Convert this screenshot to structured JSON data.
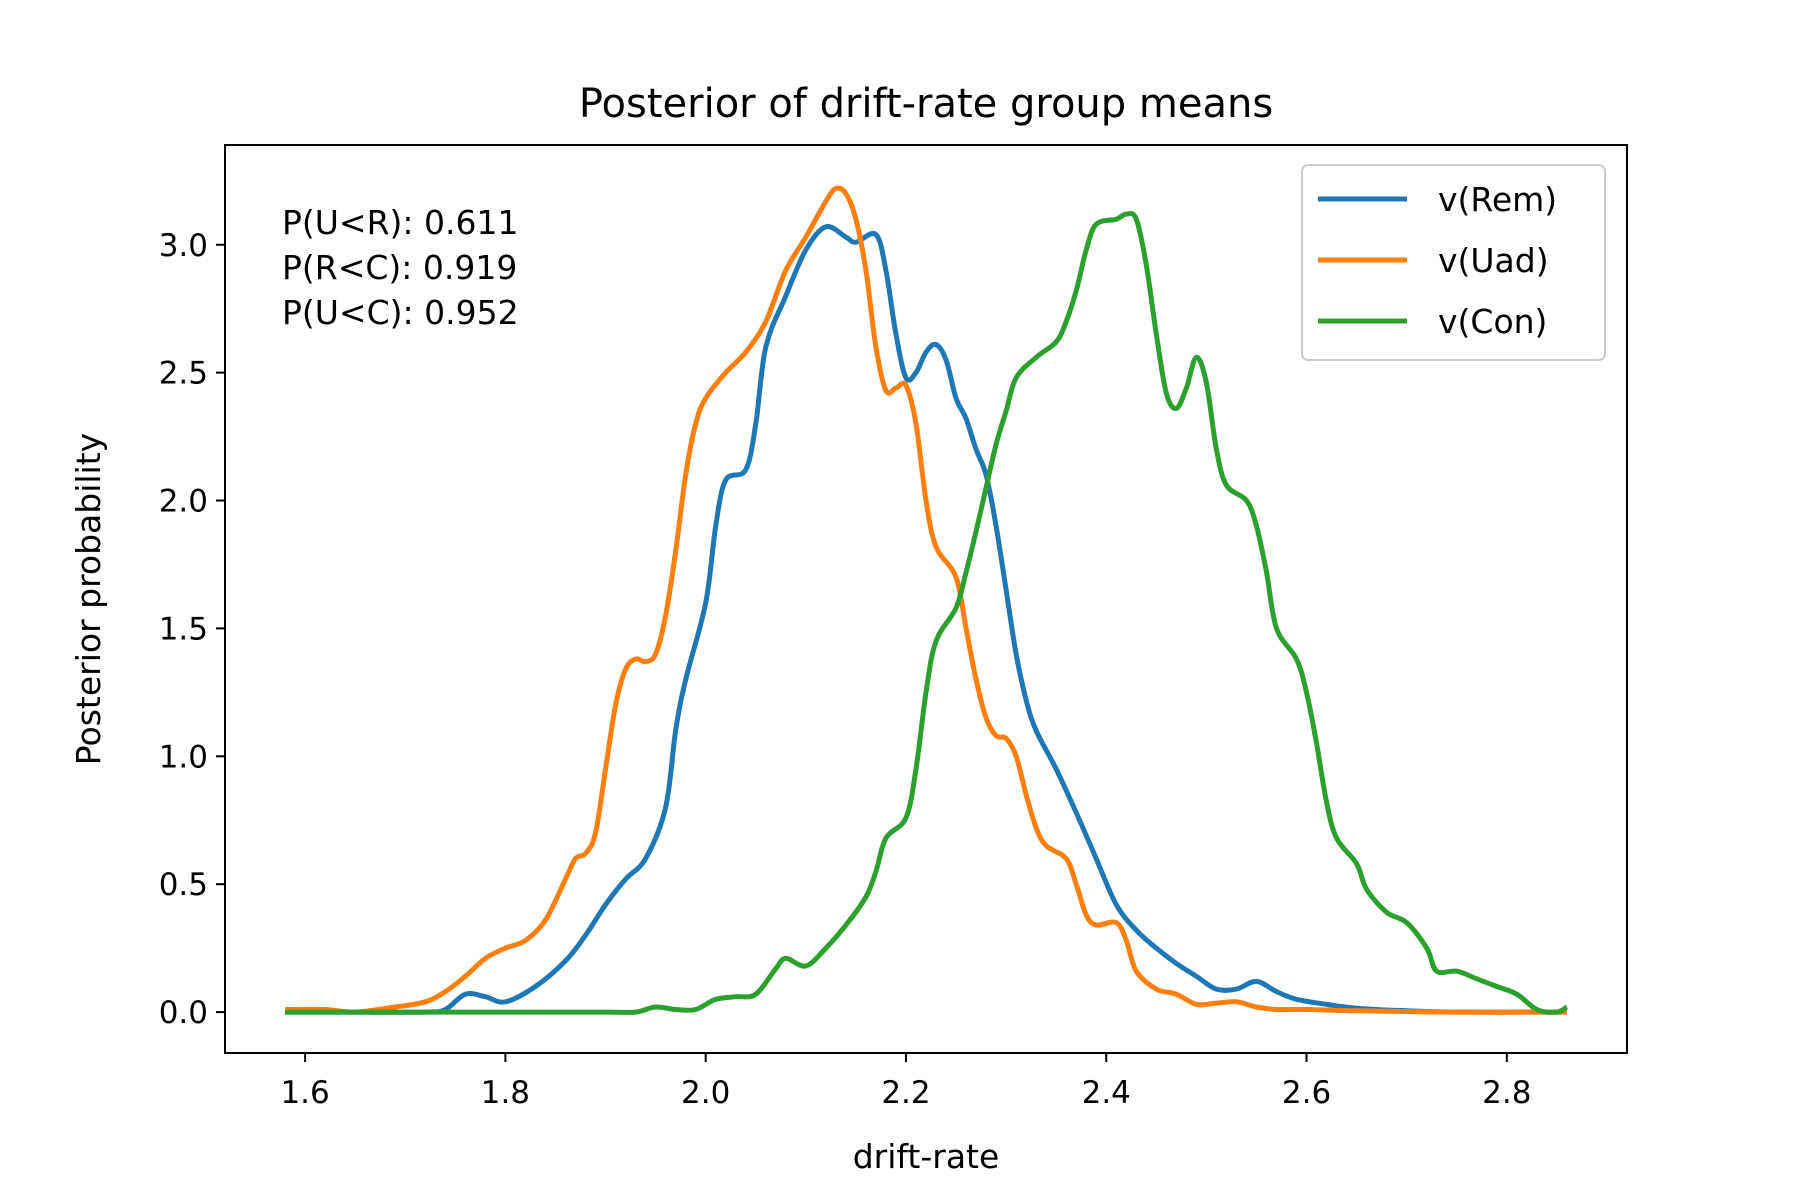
{
  "chart_data": {
    "type": "line",
    "title": "Posterior of drift-rate group means",
    "xlabel": "drift-rate",
    "ylabel": "Posterior probability",
    "xlim": [
      1.52,
      2.92
    ],
    "ylim": [
      -0.16,
      3.39
    ],
    "xticks": [
      "1.6",
      "1.8",
      "2.0",
      "2.2",
      "2.4",
      "2.6",
      "2.8"
    ],
    "xtick_values": [
      1.6,
      1.8,
      2.0,
      2.2,
      2.4,
      2.6,
      2.8
    ],
    "yticks": [
      "0.0",
      "0.5",
      "1.0",
      "1.5",
      "2.0",
      "2.5",
      "3.0"
    ],
    "ytick_values": [
      0.0,
      0.5,
      1.0,
      1.5,
      2.0,
      2.5,
      3.0
    ],
    "grid": false,
    "legend_position": "top-right",
    "annotations": [
      "P(U<R): 0.611",
      "P(R<C): 0.919",
      "P(U<C): 0.952"
    ],
    "series": [
      {
        "name": "v(Rem)",
        "color": "#1f77b4",
        "points": [
          [
            1.58,
            0.0
          ],
          [
            1.65,
            0.0
          ],
          [
            1.72,
            0.0
          ],
          [
            1.74,
            0.01
          ],
          [
            1.76,
            0.07
          ],
          [
            1.78,
            0.06
          ],
          [
            1.8,
            0.04
          ],
          [
            1.83,
            0.1
          ],
          [
            1.86,
            0.2
          ],
          [
            1.88,
            0.3
          ],
          [
            1.9,
            0.42
          ],
          [
            1.92,
            0.52
          ],
          [
            1.94,
            0.6
          ],
          [
            1.96,
            0.8
          ],
          [
            1.97,
            1.1
          ],
          [
            1.98,
            1.3
          ],
          [
            2.0,
            1.6
          ],
          [
            2.01,
            1.9
          ],
          [
            2.02,
            2.08
          ],
          [
            2.04,
            2.12
          ],
          [
            2.05,
            2.3
          ],
          [
            2.06,
            2.6
          ],
          [
            2.08,
            2.8
          ],
          [
            2.1,
            2.98
          ],
          [
            2.12,
            3.07
          ],
          [
            2.14,
            3.03
          ],
          [
            2.15,
            3.01
          ],
          [
            2.17,
            3.04
          ],
          [
            2.18,
            2.9
          ],
          [
            2.19,
            2.65
          ],
          [
            2.2,
            2.48
          ],
          [
            2.21,
            2.5
          ],
          [
            2.22,
            2.58
          ],
          [
            2.23,
            2.61
          ],
          [
            2.24,
            2.55
          ],
          [
            2.25,
            2.4
          ],
          [
            2.26,
            2.32
          ],
          [
            2.27,
            2.2
          ],
          [
            2.28,
            2.1
          ],
          [
            2.29,
            1.9
          ],
          [
            2.3,
            1.65
          ],
          [
            2.31,
            1.4
          ],
          [
            2.32,
            1.22
          ],
          [
            2.33,
            1.1
          ],
          [
            2.35,
            0.95
          ],
          [
            2.37,
            0.78
          ],
          [
            2.39,
            0.6
          ],
          [
            2.41,
            0.42
          ],
          [
            2.43,
            0.32
          ],
          [
            2.45,
            0.25
          ],
          [
            2.47,
            0.19
          ],
          [
            2.49,
            0.14
          ],
          [
            2.51,
            0.09
          ],
          [
            2.53,
            0.09
          ],
          [
            2.55,
            0.12
          ],
          [
            2.57,
            0.08
          ],
          [
            2.59,
            0.05
          ],
          [
            2.62,
            0.03
          ],
          [
            2.65,
            0.015
          ],
          [
            2.7,
            0.005
          ],
          [
            2.75,
            0.0
          ],
          [
            2.86,
            0.0
          ]
        ]
      },
      {
        "name": "v(Uad)",
        "color": "#ff7f0e",
        "points": [
          [
            1.58,
            0.01
          ],
          [
            1.62,
            0.01
          ],
          [
            1.65,
            0.0
          ],
          [
            1.69,
            0.02
          ],
          [
            1.72,
            0.04
          ],
          [
            1.74,
            0.08
          ],
          [
            1.76,
            0.14
          ],
          [
            1.78,
            0.21
          ],
          [
            1.8,
            0.25
          ],
          [
            1.82,
            0.28
          ],
          [
            1.84,
            0.36
          ],
          [
            1.86,
            0.52
          ],
          [
            1.87,
            0.6
          ],
          [
            1.88,
            0.62
          ],
          [
            1.89,
            0.7
          ],
          [
            1.9,
            0.95
          ],
          [
            1.91,
            1.2
          ],
          [
            1.92,
            1.34
          ],
          [
            1.93,
            1.38
          ],
          [
            1.94,
            1.37
          ],
          [
            1.95,
            1.4
          ],
          [
            1.96,
            1.55
          ],
          [
            1.97,
            1.8
          ],
          [
            1.98,
            2.1
          ],
          [
            1.99,
            2.3
          ],
          [
            2.0,
            2.4
          ],
          [
            2.02,
            2.5
          ],
          [
            2.04,
            2.58
          ],
          [
            2.06,
            2.7
          ],
          [
            2.08,
            2.9
          ],
          [
            2.1,
            3.03
          ],
          [
            2.12,
            3.17
          ],
          [
            2.13,
            3.22
          ],
          [
            2.14,
            3.2
          ],
          [
            2.15,
            3.1
          ],
          [
            2.16,
            2.9
          ],
          [
            2.17,
            2.6
          ],
          [
            2.18,
            2.43
          ],
          [
            2.19,
            2.44
          ],
          [
            2.2,
            2.45
          ],
          [
            2.21,
            2.3
          ],
          [
            2.22,
            2.0
          ],
          [
            2.23,
            1.82
          ],
          [
            2.25,
            1.7
          ],
          [
            2.26,
            1.5
          ],
          [
            2.27,
            1.3
          ],
          [
            2.28,
            1.15
          ],
          [
            2.29,
            1.08
          ],
          [
            2.3,
            1.07
          ],
          [
            2.31,
            1.0
          ],
          [
            2.32,
            0.85
          ],
          [
            2.33,
            0.72
          ],
          [
            2.34,
            0.65
          ],
          [
            2.36,
            0.6
          ],
          [
            2.37,
            0.5
          ],
          [
            2.38,
            0.38
          ],
          [
            2.39,
            0.34
          ],
          [
            2.41,
            0.35
          ],
          [
            2.42,
            0.28
          ],
          [
            2.43,
            0.16
          ],
          [
            2.45,
            0.09
          ],
          [
            2.47,
            0.07
          ],
          [
            2.49,
            0.03
          ],
          [
            2.51,
            0.035
          ],
          [
            2.53,
            0.04
          ],
          [
            2.55,
            0.02
          ],
          [
            2.57,
            0.01
          ],
          [
            2.6,
            0.01
          ],
          [
            2.65,
            0.005
          ],
          [
            2.75,
            0.0
          ],
          [
            2.86,
            0.0
          ]
        ]
      },
      {
        "name": "v(Con)",
        "color": "#2ca02c",
        "points": [
          [
            1.58,
            0.0
          ],
          [
            1.7,
            0.0
          ],
          [
            1.8,
            0.0
          ],
          [
            1.9,
            0.0
          ],
          [
            1.93,
            0.0
          ],
          [
            1.95,
            0.02
          ],
          [
            1.97,
            0.01
          ],
          [
            1.99,
            0.01
          ],
          [
            2.01,
            0.05
          ],
          [
            2.03,
            0.06
          ],
          [
            2.05,
            0.07
          ],
          [
            2.07,
            0.17
          ],
          [
            2.08,
            0.21
          ],
          [
            2.1,
            0.18
          ],
          [
            2.12,
            0.25
          ],
          [
            2.14,
            0.34
          ],
          [
            2.16,
            0.45
          ],
          [
            2.17,
            0.55
          ],
          [
            2.18,
            0.68
          ],
          [
            2.2,
            0.76
          ],
          [
            2.21,
            0.95
          ],
          [
            2.22,
            1.25
          ],
          [
            2.23,
            1.45
          ],
          [
            2.25,
            1.58
          ],
          [
            2.26,
            1.72
          ],
          [
            2.27,
            1.88
          ],
          [
            2.28,
            2.05
          ],
          [
            2.29,
            2.22
          ],
          [
            2.3,
            2.35
          ],
          [
            2.31,
            2.48
          ],
          [
            2.33,
            2.56
          ],
          [
            2.35,
            2.62
          ],
          [
            2.36,
            2.7
          ],
          [
            2.37,
            2.82
          ],
          [
            2.38,
            2.98
          ],
          [
            2.39,
            3.08
          ],
          [
            2.41,
            3.1
          ],
          [
            2.42,
            3.12
          ],
          [
            2.43,
            3.1
          ],
          [
            2.44,
            2.92
          ],
          [
            2.45,
            2.65
          ],
          [
            2.46,
            2.42
          ],
          [
            2.47,
            2.36
          ],
          [
            2.48,
            2.44
          ],
          [
            2.49,
            2.56
          ],
          [
            2.5,
            2.46
          ],
          [
            2.51,
            2.2
          ],
          [
            2.52,
            2.06
          ],
          [
            2.54,
            2.0
          ],
          [
            2.55,
            1.9
          ],
          [
            2.56,
            1.72
          ],
          [
            2.57,
            1.5
          ],
          [
            2.59,
            1.38
          ],
          [
            2.6,
            1.25
          ],
          [
            2.61,
            1.05
          ],
          [
            2.62,
            0.82
          ],
          [
            2.63,
            0.68
          ],
          [
            2.65,
            0.58
          ],
          [
            2.66,
            0.48
          ],
          [
            2.68,
            0.39
          ],
          [
            2.7,
            0.35
          ],
          [
            2.72,
            0.25
          ],
          [
            2.73,
            0.16
          ],
          [
            2.75,
            0.16
          ],
          [
            2.77,
            0.13
          ],
          [
            2.79,
            0.1
          ],
          [
            2.81,
            0.07
          ],
          [
            2.83,
            0.01
          ],
          [
            2.85,
            0.0
          ],
          [
            2.86,
            0.02
          ]
        ]
      }
    ]
  }
}
